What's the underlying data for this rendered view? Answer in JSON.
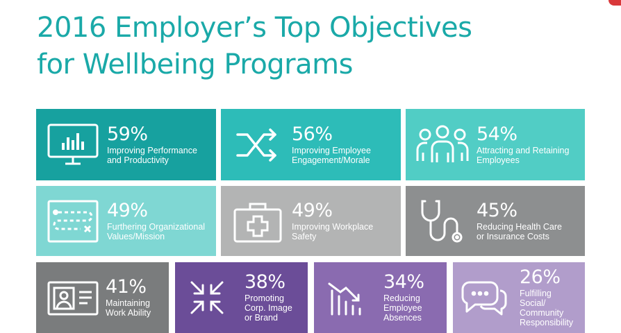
{
  "title": {
    "line1": "2016 Employer’s Top Objectives",
    "line2": "for Wellbeing Programs"
  },
  "colors": {
    "title": "#1aa9a8",
    "teal_dark": "#17a19f",
    "teal": "#2dbcb8",
    "teal_light": "#51cdc5",
    "teal_pale": "#7fd7d3",
    "gray_light": "#b3b4b4",
    "gray": "#8d8f90",
    "gray_dark": "#7a7c7d",
    "purple_dark": "#6b4d98",
    "purple": "#8a6bb0",
    "purple_light": "#b19dcb"
  },
  "tiles": [
    {
      "percent": "59%",
      "label": "Improving Performance\nand Productivity",
      "icon": "monitor-chart-icon"
    },
    {
      "percent": "56%",
      "label": "Improving Employee\nEngagement/Morale",
      "icon": "shuffle-icon"
    },
    {
      "percent": "54%",
      "label": "Attracting and Retaining\nEmployees",
      "icon": "people-group-icon"
    },
    {
      "percent": "49%",
      "label": "Furthering Organizational\nValues/Mission",
      "icon": "roadmap-icon"
    },
    {
      "percent": "49%",
      "label": "Improving Workplace\nSafety",
      "icon": "first-aid-kit-icon"
    },
    {
      "percent": "45%",
      "label": "Reducing Health Care\nor Insurance Costs",
      "icon": "stethoscope-icon"
    },
    {
      "percent": "41%",
      "label": "Maintaining\nWork Ability",
      "icon": "id-card-icon"
    },
    {
      "percent": "38%",
      "label": "Promoting\nCorp. Image\nor Brand",
      "icon": "compress-arrows-icon"
    },
    {
      "percent": "34%",
      "label": "Reducing\nEmployee\nAbsences",
      "icon": "declining-bars-icon"
    },
    {
      "percent": "26%",
      "label": "Fulfilling\nSocial/\nCommunity\nResponsibility",
      "icon": "chat-bubbles-icon"
    }
  ]
}
